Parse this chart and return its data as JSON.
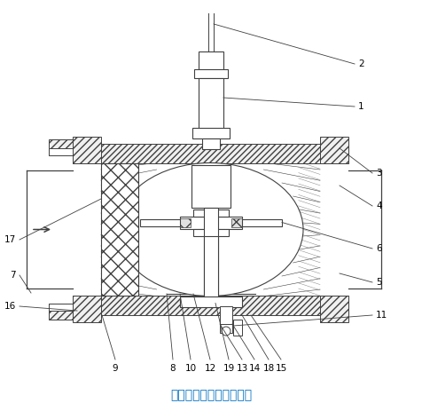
{
  "title": "本实用新型的结构示意图",
  "title_color": "#0070C0",
  "title_fontsize": 10,
  "bg_color": "#ffffff",
  "line_color": "#404040",
  "label_fontsize": 7.5
}
